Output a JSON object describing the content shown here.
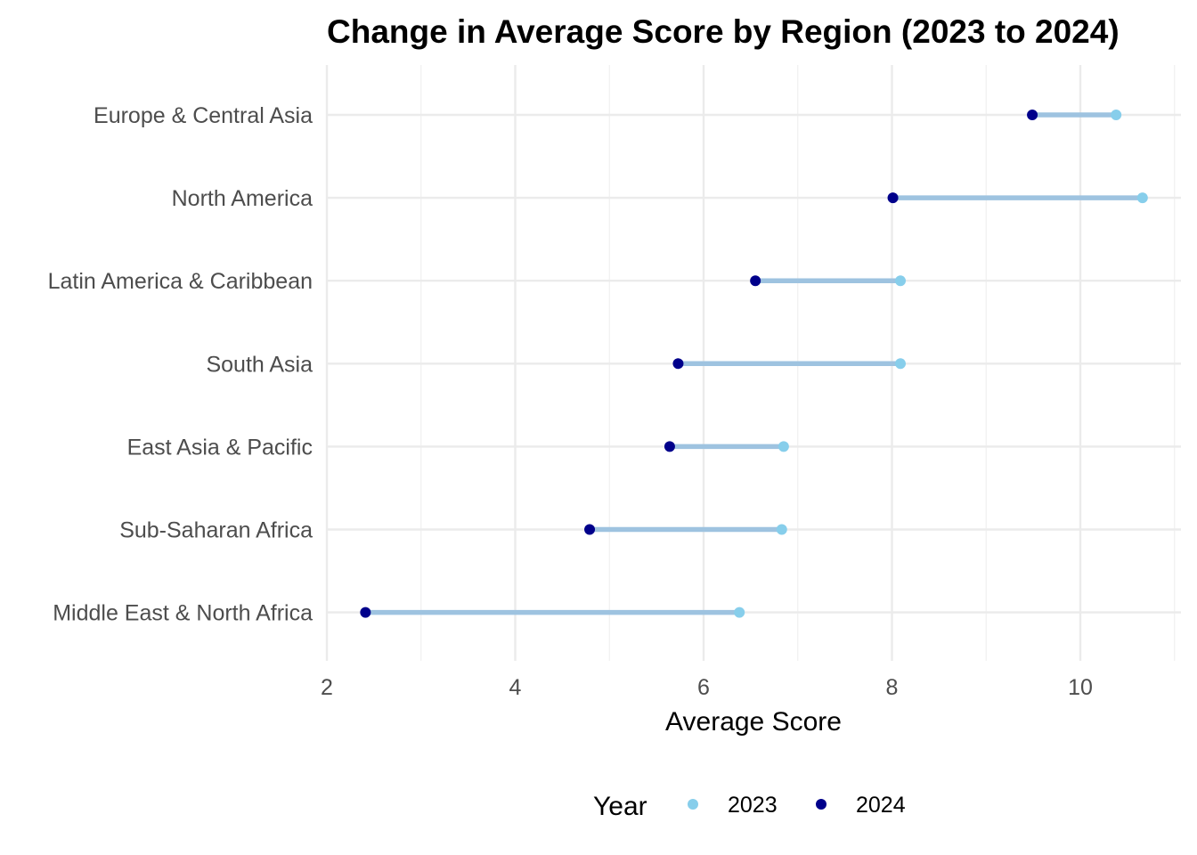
{
  "chart_data": {
    "type": "dumbbell",
    "title": "Change in Average Score by Region (2023 to 2024)",
    "xlabel": "Average Score",
    "ylabel": "",
    "xlim": [
      2,
      11.1
    ],
    "x_ticks": [
      2,
      4,
      6,
      8,
      10
    ],
    "grid": true,
    "legend": {
      "title": "Year",
      "position": "bottom",
      "entries": [
        {
          "label": "2023",
          "color": "#87ceeb"
        },
        {
          "label": "2024",
          "color": "#00008b"
        }
      ]
    },
    "segment_color": "#9ec3e0",
    "categories": [
      "Europe & Central Asia",
      "North America",
      "Latin America & Caribbean",
      "South Asia",
      "East Asia & Pacific",
      "Sub-Saharan Africa",
      "Middle East & North Africa"
    ],
    "series": [
      {
        "name": "2023",
        "color": "#87ceeb",
        "values": [
          10.38,
          10.66,
          8.09,
          8.09,
          6.85,
          6.83,
          6.38
        ]
      },
      {
        "name": "2024",
        "color": "#00008b",
        "values": [
          9.49,
          8.01,
          6.55,
          5.73,
          5.64,
          4.79,
          2.41
        ]
      }
    ]
  }
}
